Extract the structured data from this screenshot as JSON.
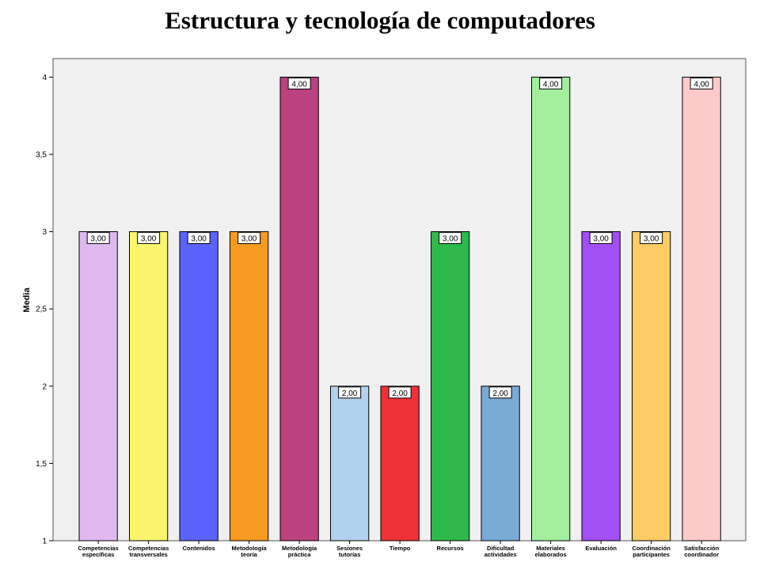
{
  "chart_data": {
    "type": "bar",
    "title": "Estructura y tecnología de computadores",
    "ylabel": "Media",
    "xlabel": "",
    "ylim": [
      1,
      4.12
    ],
    "yticks": [
      "1",
      "1,5",
      "2",
      "2,5",
      "3",
      "3,5",
      "4"
    ],
    "ytick_values": [
      1,
      1.5,
      2,
      2.5,
      3,
      3.5,
      4
    ],
    "grid": false,
    "categories": [
      [
        "Competencias",
        "específicas"
      ],
      [
        "Competencias",
        "transversales"
      ],
      [
        "Contenidos"
      ],
      [
        "Metodología",
        "teoría"
      ],
      [
        "Metodología",
        "práctica"
      ],
      [
        "Sesiones",
        "tutorías"
      ],
      [
        "Tiempo"
      ],
      [
        "Recursos"
      ],
      [
        "Dificultad",
        "actividades"
      ],
      [
        "Materiales",
        "elaborados"
      ],
      [
        "Evaluación"
      ],
      [
        "Coordinación",
        "participantes"
      ],
      [
        "Satisfacción",
        "coordinador"
      ]
    ],
    "values": [
      3,
      3,
      3,
      3,
      4,
      2,
      2,
      3,
      2,
      4,
      3,
      3,
      4
    ],
    "data_labels": [
      "3,00",
      "3,00",
      "3,00",
      "3,00",
      "4,00",
      "2,00",
      "2,00",
      "3,00",
      "2,00",
      "4,00",
      "3,00",
      "3,00",
      "4,00"
    ],
    "colors": [
      "#dfb8f0",
      "#fbf56e",
      "#5a64fc",
      "#f79a22",
      "#bb417f",
      "#b1d2ef",
      "#ee3238",
      "#2eb94a",
      "#7aaad6",
      "#a3ef9e",
      "#a24ff6",
      "#fdcc64",
      "#fdcaca"
    ],
    "plot_background": "#f0f0f0"
  }
}
